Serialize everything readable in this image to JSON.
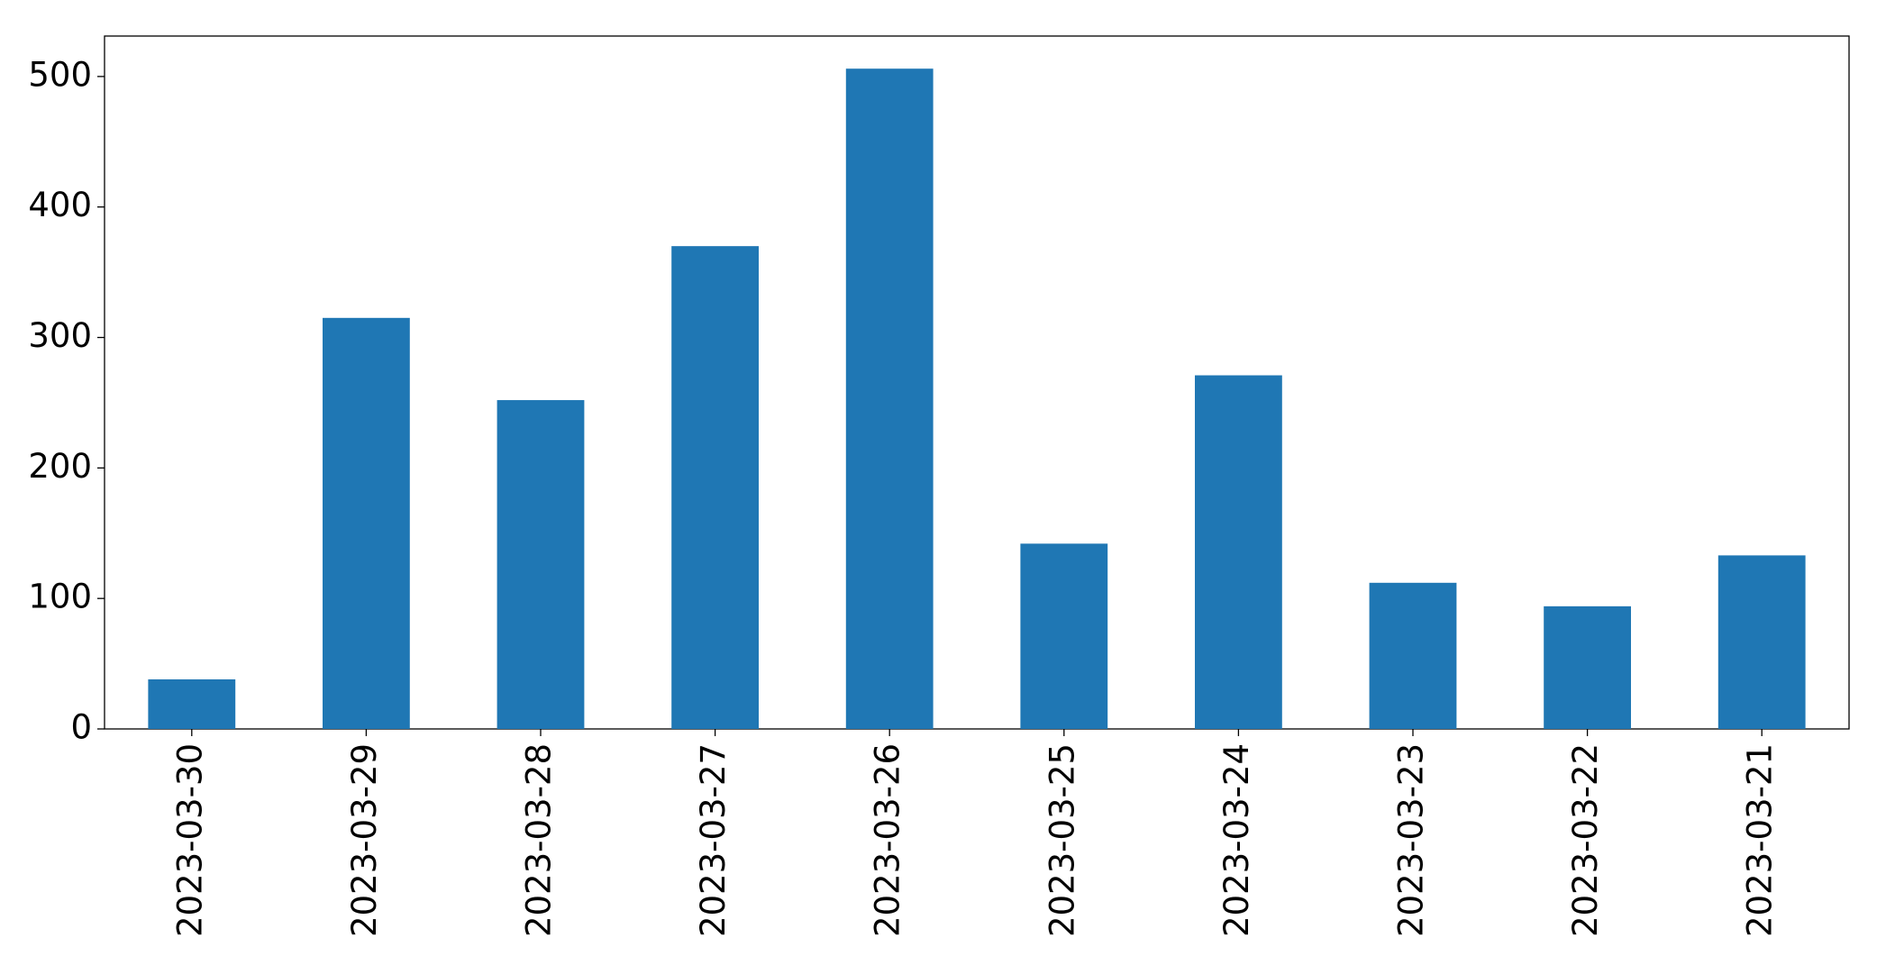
{
  "chart_data": {
    "type": "bar",
    "categories": [
      "2023-03-30",
      "2023-03-29",
      "2023-03-28",
      "2023-03-27",
      "2023-03-26",
      "2023-03-25",
      "2023-03-24",
      "2023-03-23",
      "2023-03-22",
      "2023-03-21"
    ],
    "values": [
      38,
      315,
      252,
      370,
      506,
      142,
      271,
      112,
      94,
      133
    ],
    "color": "#1f77b4",
    "ylim": [
      0,
      531
    ],
    "yticks": [
      0,
      100,
      200,
      300,
      400,
      500
    ],
    "grid": false
  }
}
